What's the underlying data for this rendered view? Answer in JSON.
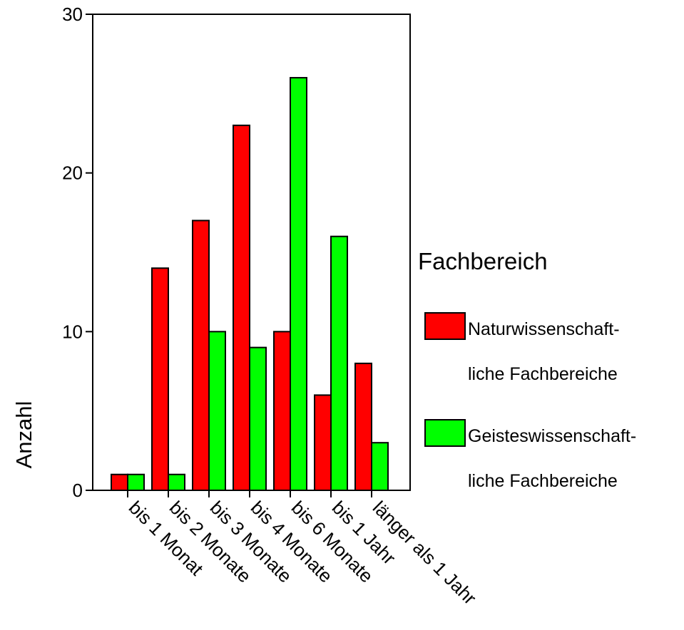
{
  "chart_data": {
    "type": "bar",
    "title": "",
    "xlabel": "",
    "ylabel": "Anzahl",
    "ylim": [
      0,
      30
    ],
    "yticks": [
      0,
      10,
      20,
      30
    ],
    "grid": false,
    "legend_position": "right",
    "legend_title": "Fachbereich",
    "categories": [
      "bis 1 Monat",
      "bis 2 Monate",
      "bis 3 Monate",
      "bis 4 Monate",
      "bis 6 Monate",
      "bis 1 Jahr",
      "länger als 1 Jahr"
    ],
    "series": [
      {
        "name": "Naturwissenschaftliche Fachbereiche",
        "legend_lines": [
          "Naturwissenschaft-",
          "liche Fachbereiche"
        ],
        "color": "#ff0000",
        "values": [
          1,
          14,
          17,
          23,
          10,
          6,
          8
        ]
      },
      {
        "name": "Geisteswissenschaftliche Fachbereiche",
        "legend_lines": [
          "Geisteswissenschaft-",
          "liche Fachbereiche"
        ],
        "color": "#00ff00",
        "values": [
          1,
          1,
          10,
          9,
          26,
          16,
          3
        ]
      }
    ]
  }
}
